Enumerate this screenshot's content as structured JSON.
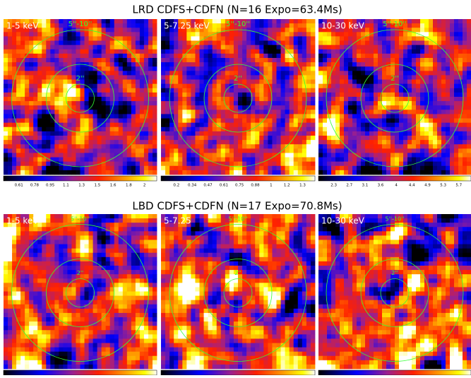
{
  "rows": [
    {
      "title": "LRD CDFS+CDFN (N=16 Expo=63.4Ms)",
      "panels": [
        {
          "label": "1-5 keV",
          "outer_label": "5''-10''",
          "inner_label": "2''",
          "colorbar_ticks": [
            "0.61",
            "0.78",
            "0.95",
            "1.1",
            "1.3",
            "1.5",
            "1.6",
            "1.8",
            "2"
          ]
        },
        {
          "label": "5-7.25 keV",
          "outer_label": "5''-10''",
          "inner_label": "2''",
          "colorbar_ticks": [
            "0.2",
            "0.34",
            "0.47",
            "0.61",
            "0.75",
            "0.88",
            "1",
            "1.2",
            "1.3"
          ]
        },
        {
          "label": "10-30 keV",
          "outer_label": "5''-10''",
          "inner_label": "2''",
          "colorbar_ticks": [
            "2.3",
            "2.7",
            "3.1",
            "3.6",
            "4",
            "4.4",
            "4.9",
            "5.3",
            "5.7"
          ]
        }
      ]
    },
    {
      "title": "LBD CDFS+CDFN (N=17 Expo=70.8Ms)",
      "panels": [
        {
          "label": "1-5 keV",
          "outer_label": "5''-10''",
          "inner_label": "2''"
        },
        {
          "label": "5-7.25",
          "outer_label": "5''-10''",
          "inner_label": "2''"
        },
        {
          "label": "10-30 keV",
          "outer_label": "5''-10''",
          "inner_label": "2''"
        }
      ]
    }
  ]
}
